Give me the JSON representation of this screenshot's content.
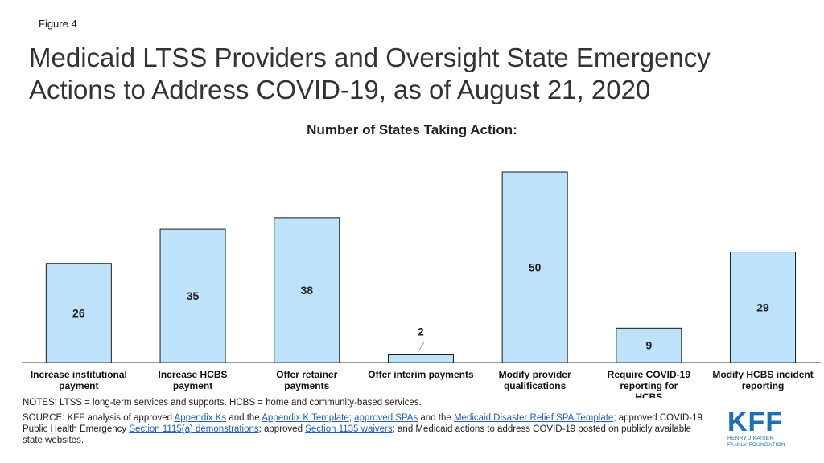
{
  "figure_label": "Figure 4",
  "title": "Medicaid LTSS Providers and Oversight State Emergency Actions to Address COVID-19, as of August 21, 2020",
  "chart_data": {
    "type": "bar",
    "title": "Number of States Taking Action:",
    "categories": [
      [
        "Increase institutional",
        "payment"
      ],
      [
        "Increase HCBS",
        "payment"
      ],
      [
        "Offer retainer",
        "payments"
      ],
      [
        "Offer interim payments"
      ],
      [
        "Modify provider",
        "qualifications"
      ],
      [
        "Require COVID-19",
        "reporting for",
        "HCBS"
      ],
      [
        "Modify HCBS incident",
        "reporting"
      ]
    ],
    "values": [
      26,
      35,
      38,
      2,
      50,
      9,
      29
    ],
    "ylim": [
      0,
      50
    ],
    "grid": false,
    "bar_color": "#bfe2fb",
    "bar_stroke": "#1a1a1a"
  },
  "notes": "NOTES: LTSS = long-term services and supports. HCBS = home and community-based services.",
  "source": {
    "prefix": "SOURCE: KFF analysis of approved ",
    "link1": "Appendix Ks",
    "t1": " and the ",
    "link2": "Appendix K Template",
    "t2": "; ",
    "link3": "approved SPAs",
    "t3": " and the ",
    "link4": "Medicaid Disaster Relief SPA Template",
    "t4": "; approved COVID-19 Public Health Emergency ",
    "link5": "Section 1115(a) demonstrations",
    "t5": "; approved ",
    "link6": "Section 1135 waivers",
    "t6": "; and Medicaid actions to address COVID-19 posted on publicly available state websites."
  },
  "logo": {
    "mark": "KFF",
    "line1": "HENRY J KAISER",
    "line2": "FAMILY FOUNDATION"
  }
}
